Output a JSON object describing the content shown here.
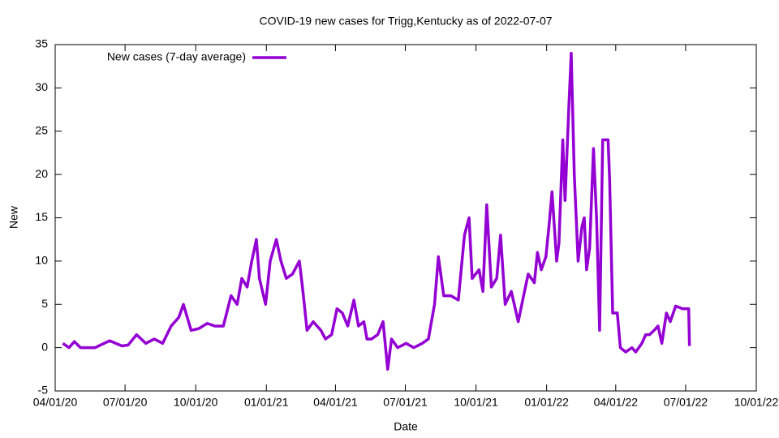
{
  "chart_data": {
    "type": "line",
    "title": "COVID-19 new cases for Trigg,Kentucky as of 2022-07-07",
    "x_label": "Date",
    "y_label": "New",
    "legend": "top-left",
    "x": [
      "2020-04-11",
      "2020-04-19",
      "2020-04-26",
      "2020-05-04",
      "2020-05-23",
      "2020-06-11",
      "2020-06-27",
      "2020-07-05",
      "2020-07-16",
      "2020-07-28",
      "2020-08-08",
      "2020-08-19",
      "2020-08-30",
      "2020-09-09",
      "2020-09-15",
      "2020-09-25",
      "2020-10-05",
      "2020-10-16",
      "2020-10-26",
      "2020-11-06",
      "2020-11-16",
      "2020-11-24",
      "2020-11-30",
      "2020-12-07",
      "2020-12-13",
      "2020-12-19",
      "2020-12-23",
      "2020-12-31",
      "2021-01-06",
      "2021-01-14",
      "2021-01-20",
      "2021-01-27",
      "2021-02-04",
      "2021-02-13",
      "2021-02-17",
      "2021-02-23",
      "2021-03-03",
      "2021-03-13",
      "2021-03-19",
      "2021-03-27",
      "2021-04-03",
      "2021-04-10",
      "2021-04-17",
      "2021-04-25",
      "2021-05-01",
      "2021-05-08",
      "2021-05-12",
      "2021-05-18",
      "2021-05-26",
      "2021-06-02",
      "2021-06-08",
      "2021-06-13",
      "2021-06-21",
      "2021-07-02",
      "2021-07-12",
      "2021-07-23",
      "2021-07-31",
      "2021-08-08",
      "2021-08-13",
      "2021-08-20",
      "2021-08-29",
      "2021-09-08",
      "2021-09-16",
      "2021-09-22",
      "2021-09-26",
      "2021-10-05",
      "2021-10-10",
      "2021-10-15",
      "2021-10-21",
      "2021-10-28",
      "2021-11-02",
      "2021-11-08",
      "2021-11-16",
      "2021-11-25",
      "2021-12-02",
      "2021-12-08",
      "2021-12-16",
      "2021-12-20",
      "2021-12-25",
      "2021-12-31",
      "2022-01-04",
      "2022-01-08",
      "2022-01-14",
      "2022-01-17",
      "2022-01-22",
      "2022-01-25",
      "2022-01-30",
      "2022-02-02",
      "2022-02-06",
      "2022-02-11",
      "2022-02-16",
      "2022-02-19",
      "2022-02-22",
      "2022-02-26",
      "2022-03-03",
      "2022-03-07",
      "2022-03-11",
      "2022-03-15",
      "2022-03-22",
      "2022-03-24",
      "2022-03-28",
      "2022-04-03",
      "2022-04-07",
      "2022-04-14",
      "2022-04-22",
      "2022-04-27",
      "2022-05-05",
      "2022-05-10",
      "2022-05-15",
      "2022-05-21",
      "2022-05-26",
      "2022-05-31",
      "2022-06-06",
      "2022-06-11",
      "2022-06-18",
      "2022-06-27",
      "2022-07-05",
      "2022-07-06"
    ],
    "series": [
      {
        "name": "New cases (7-day average)",
        "color": "#9400d3",
        "values": [
          0.5,
          0,
          0.7,
          0,
          0,
          0.8,
          0.2,
          0.3,
          1.5,
          0.5,
          1,
          0.5,
          2.5,
          3.5,
          5,
          2,
          2.2,
          2.8,
          2.5,
          2.5,
          6,
          5,
          8,
          7,
          10,
          12.5,
          8,
          5,
          10,
          12.5,
          10,
          8,
          8.5,
          10,
          7,
          2,
          3,
          2,
          1,
          1.5,
          4.5,
          4,
          2.5,
          5.5,
          2.5,
          3,
          1,
          1,
          1.5,
          3,
          -2.5,
          1,
          0,
          0.5,
          0,
          0.5,
          1,
          5,
          10.5,
          6,
          6,
          5.5,
          13,
          15,
          8,
          9,
          6.5,
          16.5,
          7,
          8,
          13,
          5,
          6.5,
          3,
          6,
          8.5,
          7.5,
          11,
          9,
          10.5,
          14,
          18,
          10,
          12,
          24,
          17,
          28,
          34,
          20,
          10,
          14,
          15,
          9,
          11.5,
          23,
          15,
          2,
          24,
          24,
          19.5,
          4,
          4,
          0,
          -0.5,
          0,
          -0.5,
          0.5,
          1.5,
          1.5,
          2,
          2.5,
          0.5,
          4,
          3,
          4.8,
          4.5,
          4.5,
          0.2
        ]
      }
    ],
    "xlim": [
      "2020-04-01",
      "2022-10-01"
    ],
    "xticks": [
      {
        "value": "2020-04-01",
        "label": "04/01/20"
      },
      {
        "value": "2020-07-01",
        "label": "07/01/20"
      },
      {
        "value": "2020-10-01",
        "label": "10/01/20"
      },
      {
        "value": "2021-01-01",
        "label": "01/01/21"
      },
      {
        "value": "2021-04-01",
        "label": "04/01/21"
      },
      {
        "value": "2021-07-01",
        "label": "07/01/21"
      },
      {
        "value": "2021-10-01",
        "label": "10/01/21"
      },
      {
        "value": "2022-01-01",
        "label": "01/01/22"
      },
      {
        "value": "2022-04-01",
        "label": "04/01/22"
      },
      {
        "value": "2022-07-01",
        "label": "07/01/22"
      },
      {
        "value": "2022-10-01",
        "label": "10/01/22"
      }
    ],
    "ylim": [
      -5,
      35
    ],
    "yticks": [
      -5,
      0,
      5,
      10,
      15,
      20,
      25,
      30,
      35
    ]
  }
}
